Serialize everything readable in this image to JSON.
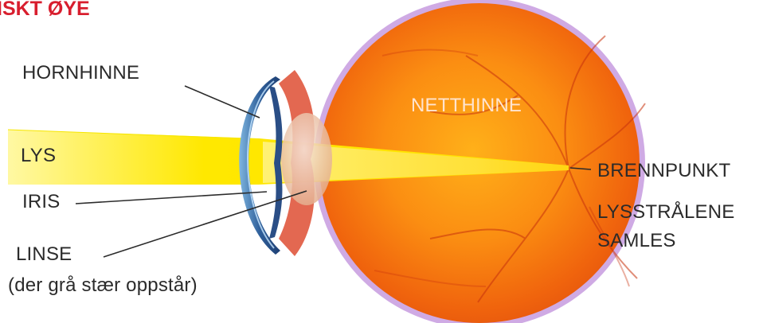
{
  "title": "ISKT ØYE",
  "labels": {
    "hornhinne": "HORNHINNE",
    "netthinne": "NETTHINNE",
    "lys": "LYS",
    "iris": "IRIS",
    "linse": "LINSE",
    "linse_note": "(der grå stær oppstår)",
    "brennpunkt": "BRENNPUNKT",
    "lysstraalene": "LYSSTRÅLENE",
    "samles": "SAMLES"
  },
  "colors": {
    "title": "#d81e2e",
    "light_beam": "#ffe600",
    "eyeball": "#f26d10",
    "sclera_rim": "#c9a6e0",
    "cornea": "#2f5f9a",
    "label_text": "#2b2b2b",
    "netthinne_text": "#ffe4cf"
  }
}
